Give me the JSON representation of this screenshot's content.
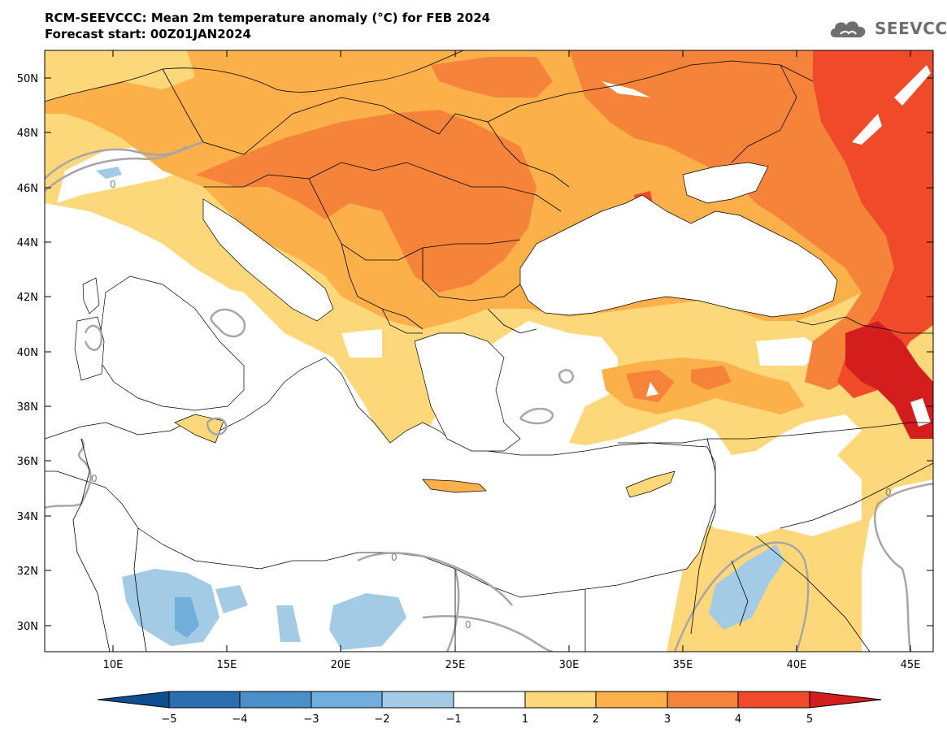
{
  "header": {
    "title_line1": "RCM-SEEVCCC: Mean 2m temperature anomaly (°C) for FEB 2024",
    "title_line2": "Forecast start: 00Z01JAN2024"
  },
  "logo": {
    "text": "SEEVCCC",
    "icon": "cloud-logo-icon"
  },
  "map": {
    "lat_labels": [
      "50N",
      "48N",
      "46N",
      "44N",
      "42N",
      "40N",
      "38N",
      "36N",
      "34N",
      "32N",
      "30N"
    ],
    "lon_labels": [
      "10E",
      "15E",
      "20E",
      "25E",
      "30E",
      "35E",
      "40E",
      "45E"
    ],
    "contour_labels": [
      "0",
      "0",
      "0",
      "0",
      "0"
    ]
  },
  "colorbar": {
    "tick_labels": [
      "−5",
      "−4",
      "−3",
      "−2",
      "−1",
      "1",
      "2",
      "3",
      "4",
      "5"
    ],
    "colors": [
      "#0b4f8f",
      "#2a6eb0",
      "#4b8fc8",
      "#72aedb",
      "#a3cbe6",
      "#ffffff",
      "#fdd87a",
      "#fbb04a",
      "#f5843a",
      "#ef4b2a",
      "#d41d1d"
    ]
  }
}
